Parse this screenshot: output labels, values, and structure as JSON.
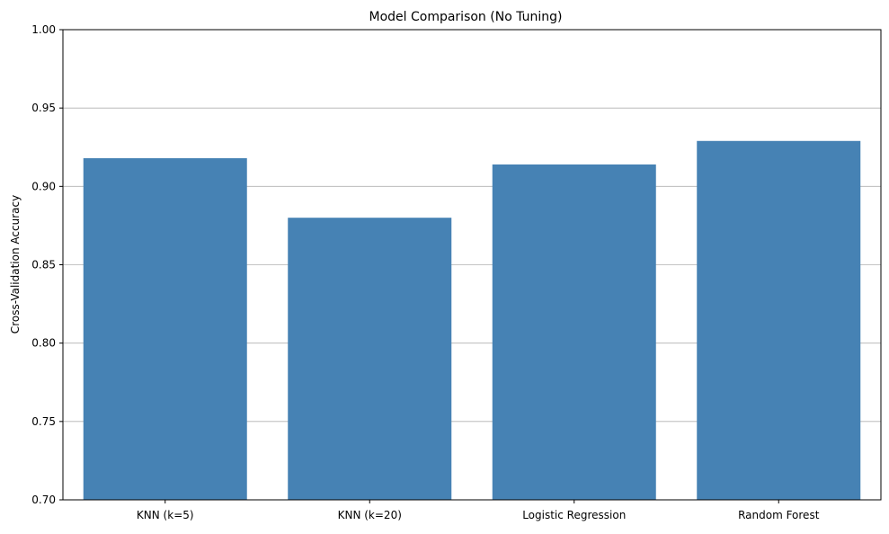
{
  "chart_data": {
    "type": "bar",
    "title": "Model Comparison (No Tuning)",
    "xlabel": "",
    "ylabel": "Cross-Validation Accuracy",
    "categories": [
      "KNN (k=5)",
      "KNN (k=20)",
      "Logistic Regression",
      "Random Forest"
    ],
    "values": [
      0.918,
      0.88,
      0.914,
      0.929
    ],
    "ylim": [
      0.7,
      1.0
    ],
    "yticks": [
      0.7,
      0.75,
      0.8,
      0.85,
      0.9,
      0.95,
      1.0
    ],
    "ytick_labels": [
      "0.70",
      "0.75",
      "0.80",
      "0.85",
      "0.90",
      "0.95",
      "1.00"
    ],
    "grid": "y-axis only",
    "legend": "none",
    "bar_color": "#4682b4",
    "grid_color": "#b0b0b0"
  }
}
